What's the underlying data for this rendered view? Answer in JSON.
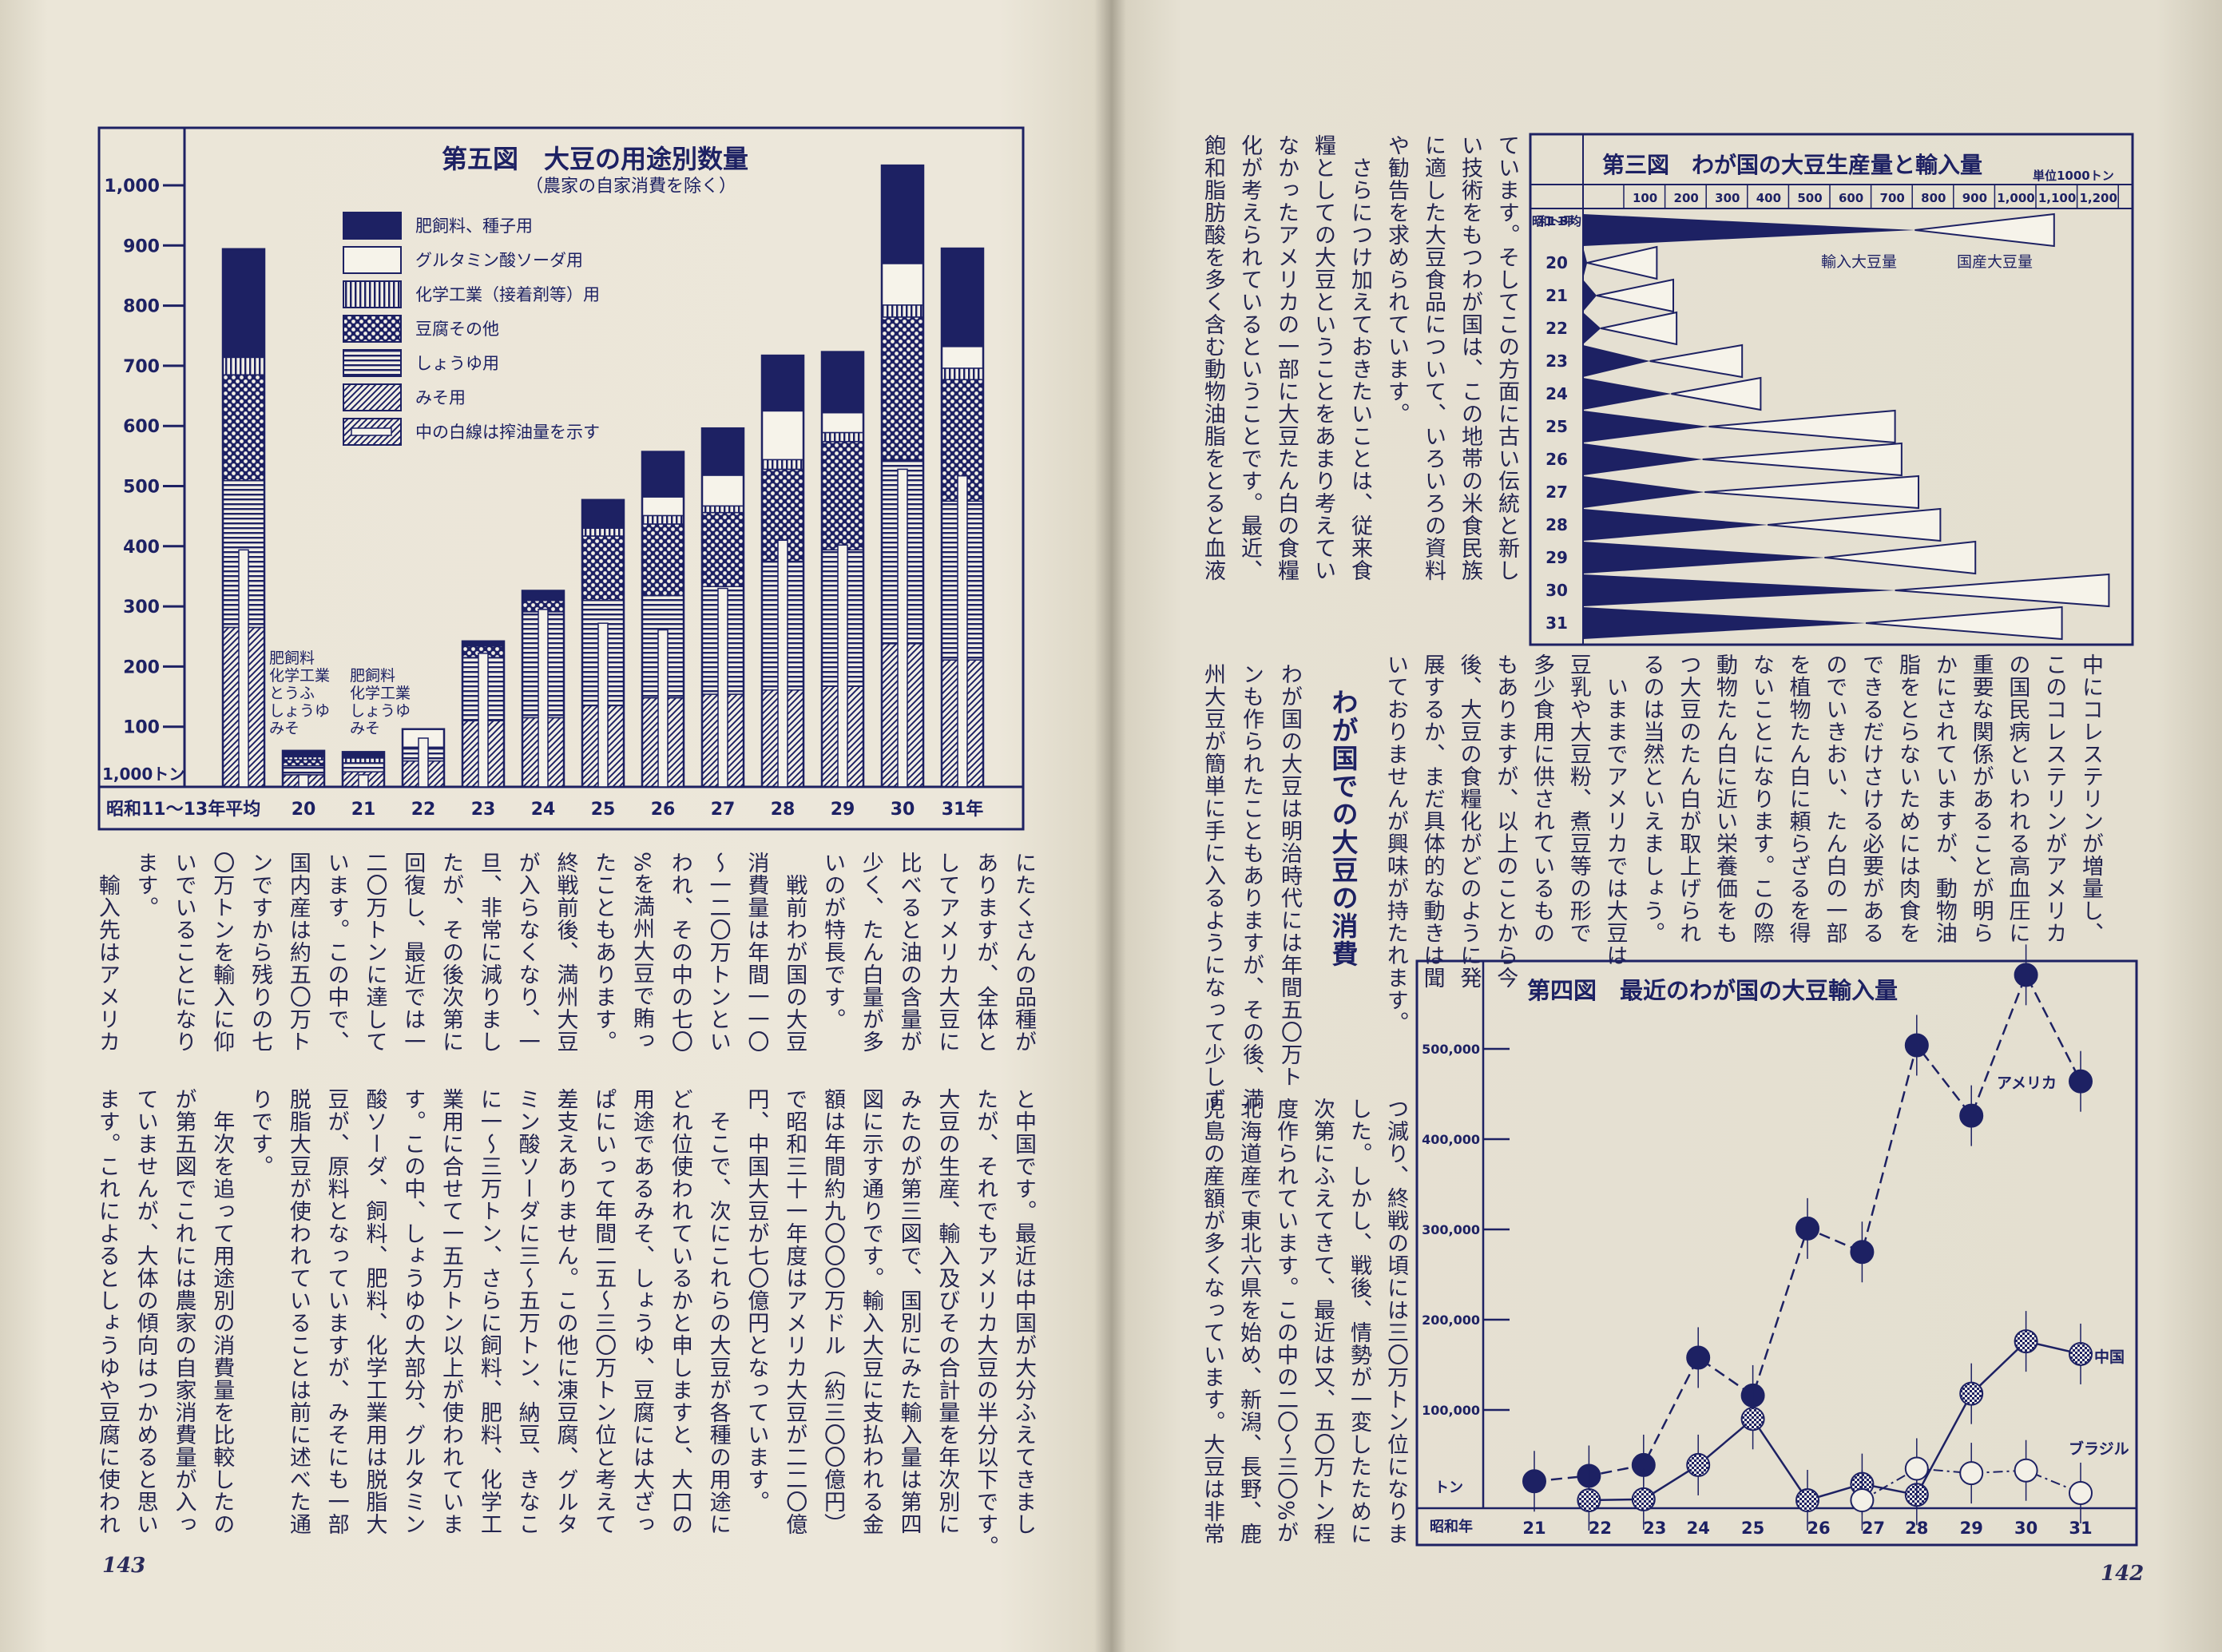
{
  "colors": {
    "ink": "#1d2163",
    "paper": "#e8e3d5"
  },
  "page_left": {
    "page_number": "143",
    "upper_columns": [
      "にたくさんの品種が",
      "ありますが、全体と",
      "してアメリカ大豆に",
      "比べると油の含量が",
      "少く、たん白量が多",
      "いのが特長です。",
      "　戦前わが国の大豆",
      "消費量は年間一一〇",
      "〜一二〇万トンとい",
      "われ、その中の七〇",
      "%を満州大豆で賄っ",
      "たこともあります。",
      "終戦前後、満州大豆",
      "が入らなくなり、一",
      "旦、非常に減りまし",
      "たが、その後次第に",
      "回復し、最近では一",
      "二〇万トンに達して",
      "います。この中で、",
      "国内産は約五〇万ト",
      "ンですから残りの七",
      "〇万トンを輸入に仰",
      "いでいることになり",
      "ます。",
      "　輸入先はアメリカ"
    ],
    "lower_columns": [
      "と中国です。最近は中国が大分ふえてきまし",
      "たが、それでもアメリカ大豆の半分以下です。",
      "大豆の生産、輸入及びその合計量を年次別に",
      "みたのが第三図で、国別にみた輸入量は第四",
      "図に示す通りです。輸入大豆に支払われる金",
      "額は年間約九〇〇〇万ドル（約三〇〇億円）",
      "で昭和三十一年度はアメリカ大豆が二二〇億",
      "円、中国大豆が七〇億円となっています。",
      "　そこで、次にこれらの大豆が各種の用途に",
      "どれ位使われているかと申しますと、大口の",
      "用途であるみそ、しょうゆ、豆腐には大ざっ",
      "ぱにいって年間二五〜三〇万トン位と考えて",
      "差支えありません。この他に凍豆腐、グルタ",
      "ミン酸ソーダに三〜五万トン、納豆、きなこ",
      "に一〜三万トン、さらに飼料、肥料、化学工",
      "業用に合せて一五万トン以上が使われていま",
      "す。この中、しょうゆの大部分、グルタミン",
      "酸ソーダ、飼料、肥料、化学工業用は脱脂大",
      "豆が、原料となっていますが、みそにも一部",
      "脱脂大豆が使われていることは前に述べた通",
      "りです。",
      "　年次を追って用途別の消費量を比較したの",
      "が第五図でこれには農家の自家消費量が入っ",
      "ていませんが、大体の傾向はつかめると思い",
      "ます。これによるとしょうゆや豆腐に使われ"
    ]
  },
  "page_right": {
    "page_number": "142",
    "top_columns": [
      "ています。そしてこの方面に古い伝統と新し",
      "い技術をもつわが国は、この地帯の米食民族",
      "に適した大豆食品について、いろいろの資料",
      "や勧告を求められています。",
      "　さらにつけ加えておきたいことは、従来食",
      "糧としての大豆ということをあまり考えてい",
      "なかったアメリカの一部に大豆たん白の食糧",
      "化が考えられているということです。最近、",
      "飽和脂肪酸を多く含む動物油脂をとると血液"
    ],
    "middle_columns": [
      "中にコレステリンが増量し、",
      "このコレステリンがアメリカ",
      "の国民病といわれる高血圧に",
      "重要な関係があることが明ら",
      "かにされていますが、動物油",
      "脂をとらないためには肉食を",
      "できるだけさける必要がある",
      "のでいきおい、たん白の一部",
      "を植物たん白に頼らざるを得",
      "ないことになります。この際",
      "動物たん白に近い栄養価をも",
      "つ大豆のたん白が取上げられ",
      "るのは当然といえましょう。",
      "　いままでアメリカでは大豆は",
      "豆乳や大豆粉、煮豆等の形で",
      "多少食用に供されているもの",
      "もありますが、以上のことから今",
      "後、大豆の食糧化がどのように発",
      "展するか、まだ具体的な動きは聞",
      "いておりませんが興味が持たれます。"
    ],
    "section_heading": "わが国での大豆の消費",
    "meiji_columns": [
      "わが国の大豆は明治時代には年間五〇万ト",
      "ンも作られたこともありますが、その後、満",
      "州大豆が簡単に手に入るようになって少しず"
    ],
    "lower_columns": [
      "つ減り、終戦の頃には三〇万トン位になりま",
      "した。しかし、戦後、情勢が一変したために",
      "次第にふえてきて、最近は又、五〇万トン程",
      "度作られています。この中の二〇〜三〇%が",
      "北海道産で東北六県を始め、新潟、長野、鹿",
      "児島の産額が多くなっています。大豆は非常"
    ]
  },
  "chart_data": [
    {
      "id": "fig5",
      "type": "bar",
      "stacked": true,
      "title": "第五図　大豆の用途別数量",
      "subtitle": "（農家の自家消費を除く）",
      "unit_label": "1,000トン",
      "ylim": [
        0,
        1050
      ],
      "yticks": [
        100,
        200,
        300,
        400,
        500,
        600,
        700,
        800,
        900,
        1000
      ],
      "ytick_labels": [
        "100",
        "200",
        "300",
        "400",
        "500",
        "600",
        "700",
        "800",
        "900",
        "1,000"
      ],
      "categories": [
        "昭和11〜13年平均",
        "20",
        "21",
        "22",
        "23",
        "24",
        "25",
        "26",
        "27",
        "28",
        "29",
        "30",
        "31年"
      ],
      "series": [
        {
          "name": "みそ用",
          "pattern": "diagonal-hatch",
          "values": [
            265,
            20,
            25,
            43,
            110,
            115,
            135,
            148,
            154,
            161,
            167,
            238,
            211
          ]
        },
        {
          "name": "しょうゆ用",
          "pattern": "horizontal-lines",
          "values": [
            244,
            15,
            15,
            23,
            105,
            176,
            175,
            170,
            179,
            214,
            227,
            306,
            264
          ]
        },
        {
          "name": "豆腐その他",
          "pattern": "dots",
          "values": [
            176,
            10,
            0,
            0,
            19,
            19,
            107,
            119,
            123,
            153,
            180,
            237,
            202
          ]
        },
        {
          "name": "化学工業（接着剤等）用",
          "pattern": "vertical-lines",
          "values": [
            29,
            5,
            8,
            0,
            0,
            0,
            13,
            14,
            11,
            16,
            15,
            20,
            19
          ]
        },
        {
          "name": "グルタミン酸ソーダ用",
          "pattern": "white",
          "values": [
            0,
            0,
            0,
            30,
            0,
            0,
            0,
            31,
            51,
            81,
            33,
            69,
            36
          ]
        },
        {
          "name": "肥飼料、種子用",
          "pattern": "solid",
          "values": [
            180,
            10,
            10,
            0,
            8,
            16,
            47,
            75,
            78,
            92,
            101,
            163,
            163
          ]
        }
      ],
      "legend_order": [
        "肥飼料、種子用",
        "グルタミン酸ソーダ用",
        "化学工業（接着剤等）用",
        "豆腐その他",
        "しょうゆ用",
        "みそ用"
      ],
      "oil_pressed": {
        "name": "中の白線は搾油量を示す",
        "values": [
          394,
          20,
          20,
          81,
          222,
          295,
          272,
          261,
          330,
          410,
          402,
          528,
          517
        ]
      },
      "annotations": [
        {
          "category": "20",
          "lines": [
            "肥飼料",
            "化学工業",
            "とうふ",
            "しょうゆ",
            "みそ"
          ]
        },
        {
          "category": "21",
          "lines": [
            "肥飼料",
            "化学工業",
            "しょうゆ",
            "みそ"
          ]
        }
      ]
    },
    {
      "id": "fig3",
      "type": "bar",
      "orientation": "horizontal",
      "stacked": true,
      "title": "第三図　わが国の大豆生産量と輸入量",
      "unit_label": "単位1000トン",
      "xlim": [
        0,
        1300
      ],
      "xticks": [
        100,
        200,
        300,
        400,
        500,
        600,
        700,
        800,
        900,
        1000,
        1100,
        1200
      ],
      "xtick_labels": [
        "100",
        "200",
        "300",
        "400",
        "500",
        "600",
        "700",
        "800",
        "900",
        "1,000",
        "1,100",
        "1,200"
      ],
      "categories": [
        "昭和11〜13平均",
        "20",
        "21",
        "22",
        "23",
        "24",
        "25",
        "26",
        "27",
        "28",
        "29",
        "30",
        "31"
      ],
      "series": [
        {
          "name": "輸入大豆量",
          "style": "filled-wedge",
          "values": [
            805,
            10,
            33,
            43,
            162,
            214,
            305,
            290,
            295,
            448,
            586,
            757,
            686
          ]
        },
        {
          "name": "国産大豆量",
          "style": "outlined-wedge",
          "values": [
            338,
            169,
            186,
            184,
            224,
            217,
            452,
            483,
            519,
            419,
            366,
            519,
            476
          ]
        }
      ]
    },
    {
      "id": "fig4",
      "type": "line",
      "title": "第四図　最近のわが国の大豆輸入量",
      "ylabel": "トン",
      "xlabel": "昭和年",
      "ylim": [
        0,
        600000
      ],
      "yticks": [
        100000,
        200000,
        300000,
        400000,
        500000
      ],
      "ytick_labels": [
        "100,000",
        "200,000",
        "300,000",
        "400,000",
        "500,000"
      ],
      "categories": [
        "21",
        "22",
        "23",
        "24",
        "25",
        "26",
        "27",
        "28",
        "29",
        "30",
        "31"
      ],
      "series": [
        {
          "name": "アメリカ",
          "marker": "filled-circle",
          "line": "dashed",
          "values": [
            21000,
            27000,
            39000,
            158000,
            116000,
            301000,
            275000,
            504000,
            426000,
            582000,
            464000
          ]
        },
        {
          "name": "中国",
          "marker": "checkered-circle",
          "line": "solid",
          "values": [
            null,
            0,
            1000,
            39000,
            90000,
            0,
            18000,
            6000,
            118000,
            176000,
            162000
          ]
        },
        {
          "name": "ブラジル",
          "marker": "open-circle",
          "line": "dash-dot",
          "values": [
            null,
            null,
            null,
            null,
            null,
            null,
            0,
            35000,
            30000,
            33000,
            8000
          ]
        }
      ]
    }
  ]
}
